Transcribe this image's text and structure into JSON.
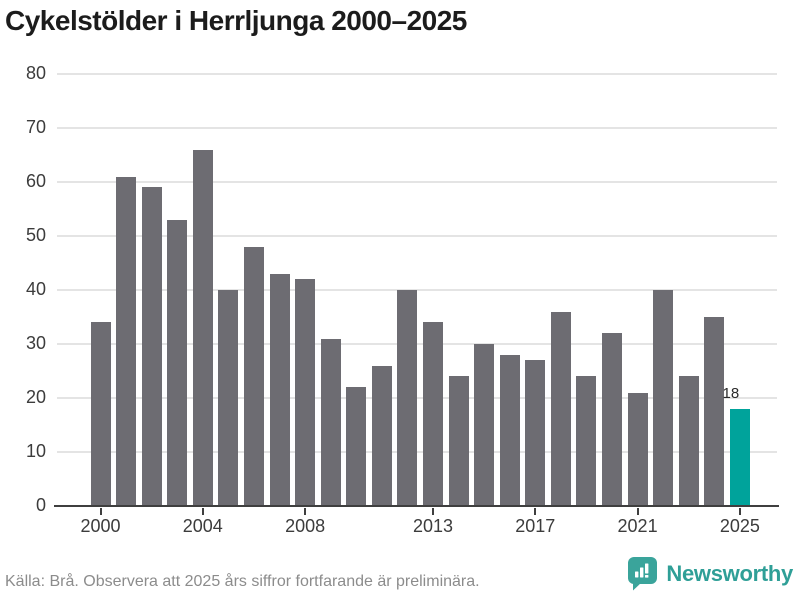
{
  "title": "Cykelstölder i Herrljunga 2000–2025",
  "chart_data": {
    "type": "bar",
    "title": "Cykelstölder i Herrljunga 2000–2025",
    "xlabel": "",
    "ylabel": "",
    "categories": [
      2000,
      2001,
      2002,
      2003,
      2004,
      2005,
      2006,
      2007,
      2008,
      2009,
      2010,
      2011,
      2012,
      2013,
      2014,
      2015,
      2016,
      2017,
      2018,
      2019,
      2020,
      2021,
      2022,
      2023,
      2024,
      2025
    ],
    "values": [
      34,
      61,
      59,
      53,
      66,
      40,
      48,
      43,
      42,
      31,
      22,
      26,
      40,
      34,
      24,
      30,
      28,
      27,
      36,
      24,
      32,
      21,
      40,
      24,
      35,
      18
    ],
    "ylim": [
      0,
      80
    ],
    "yticks": [
      0,
      10,
      20,
      30,
      40,
      50,
      60,
      70,
      80
    ],
    "xticks": [
      2000,
      2004,
      2008,
      2013,
      2017,
      2021,
      2025
    ],
    "grid": true,
    "legend": "none",
    "bar_color": "#6d6c72",
    "highlight_color": "#00a39b",
    "highlighted_category": 2025,
    "value_labels": [
      {
        "category": 2025,
        "text": "18"
      }
    ]
  },
  "footer": {
    "source_text": "Källa: Brå. Observera att 2025 års siffror fortfarande är preliminära."
  },
  "branding": {
    "name": "Newsworthy",
    "logo_icon": "bar-chart-speech-bubble",
    "logo_color": "#3aa49b",
    "text_color": "#2f9f97"
  }
}
